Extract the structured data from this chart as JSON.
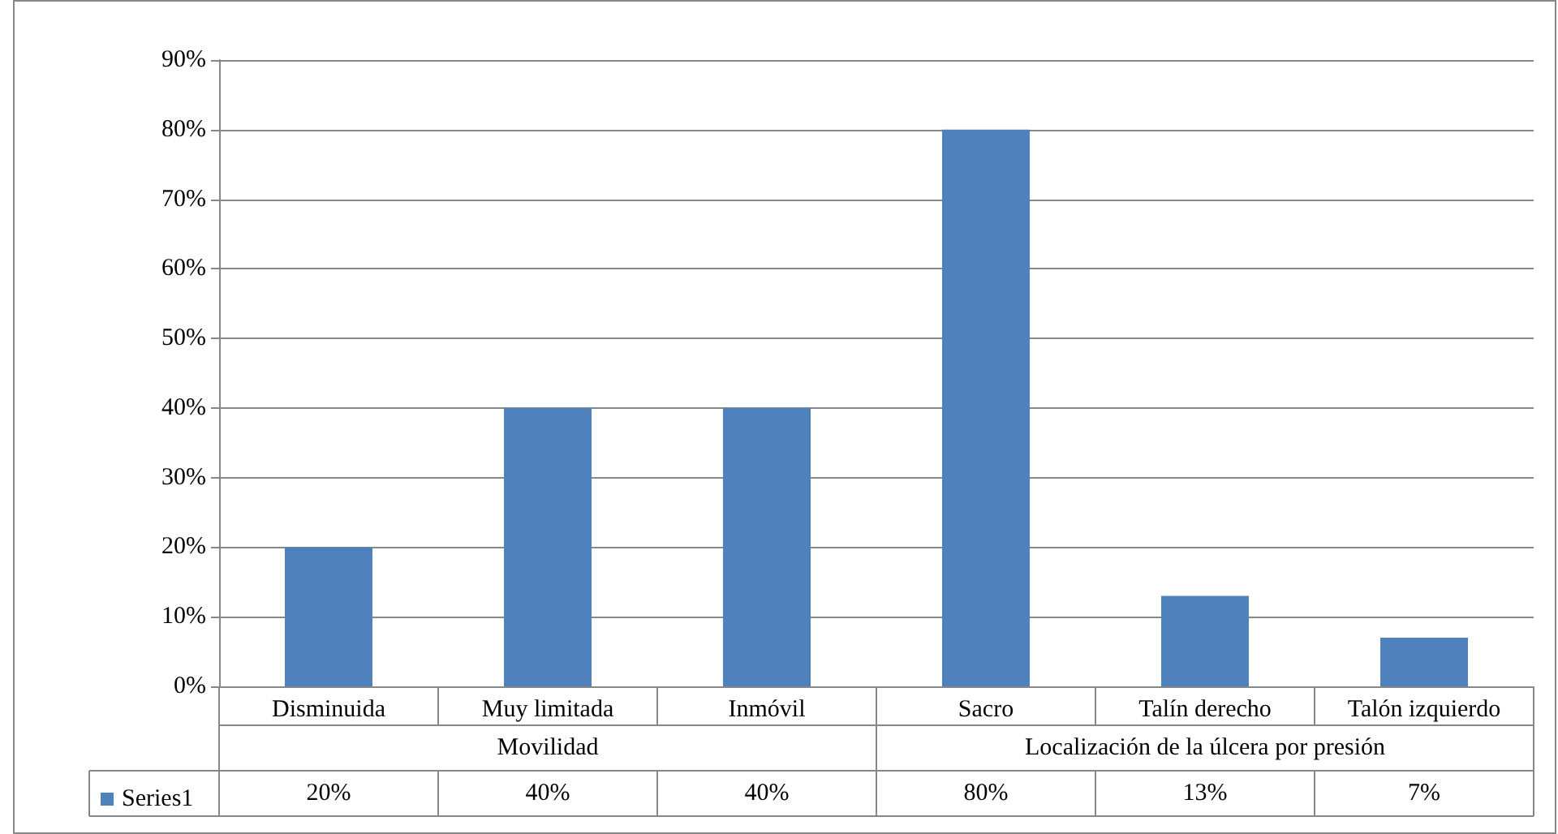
{
  "chart_data": {
    "type": "bar",
    "categories": [
      "Disminuida",
      "Muy limitada",
      "Inmóvil",
      "Sacro",
      "Talín derecho",
      "Talón izquierdo"
    ],
    "series": [
      {
        "name": "Series1",
        "color": "#4f81bd",
        "values": [
          20,
          40,
          40,
          80,
          13,
          7
        ],
        "value_labels": [
          "20%",
          "40%",
          "40%",
          "80%",
          "13%",
          "7%"
        ]
      }
    ],
    "annotations": [
      "Movilidad",
      "Localización de la úlcera por presión"
    ],
    "ylim": [
      0,
      90
    ],
    "yticks": [
      {
        "value": 0,
        "label": "0%"
      },
      {
        "value": 10,
        "label": "10%"
      },
      {
        "value": 20,
        "label": "20%"
      },
      {
        "value": 30,
        "label": "30%"
      },
      {
        "value": 40,
        "label": "40%"
      },
      {
        "value": 50,
        "label": "50%"
      },
      {
        "value": 60,
        "label": "60%"
      },
      {
        "value": 70,
        "label": "70%"
      },
      {
        "value": 80,
        "label": "80%"
      },
      {
        "value": 90,
        "label": "90%"
      }
    ],
    "grid": "y",
    "legend": "bottom left"
  }
}
